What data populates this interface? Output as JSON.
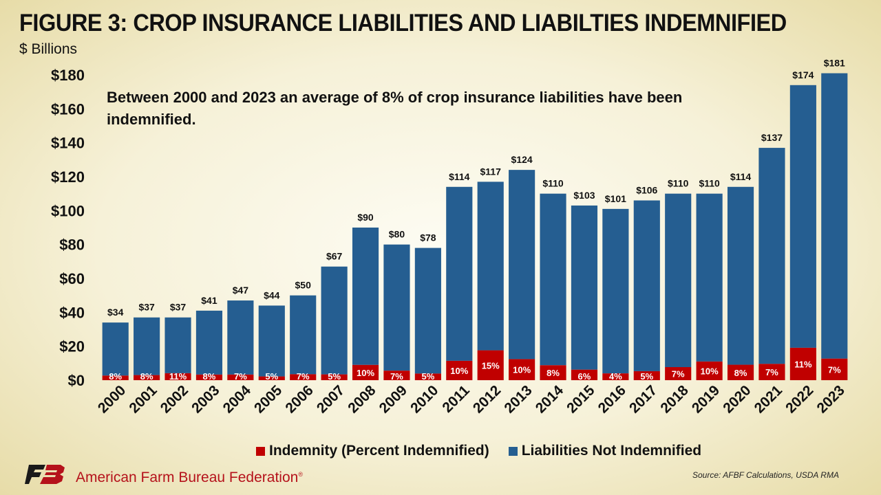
{
  "header": {
    "title": "FIGURE 3: CROP INSURANCE LIABILITIES AND LIABILTIES INDEMNIFIED",
    "unit": "$ Billions"
  },
  "annotation": {
    "line1": "Between 2000 and 2023 an average of 8% of crop insurance liabilities have been",
    "line2": "indemnified."
  },
  "legend": {
    "indemnity": "Indemnity (Percent Indemnified)",
    "not_indemnified": "Liabilities Not Indemnified"
  },
  "footer": {
    "org": "American Farm Bureau Federation",
    "registered": "®",
    "source": "Source: AFBF Calculations, USDA RMA"
  },
  "colors": {
    "indemnity": "#c00000",
    "not_indemnified": "#255e91",
    "brand_red": "#b5121b",
    "logo_dark": "#1a1a1a"
  },
  "chart_data": {
    "type": "bar",
    "stacked": true,
    "categories": [
      "2000",
      "2001",
      "2002",
      "2003",
      "2004",
      "2005",
      "2006",
      "2007",
      "2008",
      "2009",
      "2010",
      "2011",
      "2012",
      "2013",
      "2014",
      "2015",
      "2016",
      "2017",
      "2018",
      "2019",
      "2020",
      "2021",
      "2022",
      "2023"
    ],
    "ylim": [
      0,
      180
    ],
    "ytick_values": [
      0,
      20,
      40,
      60,
      80,
      100,
      120,
      140,
      160,
      180
    ],
    "ytick_labels": [
      "$0",
      "$20",
      "$40",
      "$60",
      "$80",
      "$100",
      "$120",
      "$140",
      "$160",
      "$180"
    ],
    "grid": false,
    "legend_position": "bottom",
    "total_labels": [
      "$34",
      "$37",
      "$37",
      "$41",
      "$47",
      "$44",
      "$50",
      "$67",
      "$90",
      "$80",
      "$78",
      "$114",
      "$117",
      "$124",
      "$110",
      "$103",
      "$101",
      "$106",
      "$110",
      "$110",
      "$114",
      "$137",
      "$174",
      "$181"
    ],
    "percent_labels": [
      "8%",
      "8%",
      "11%",
      "8%",
      "7%",
      "5%",
      "7%",
      "5%",
      "10%",
      "7%",
      "5%",
      "10%",
      "15%",
      "10%",
      "8%",
      "6%",
      "4%",
      "5%",
      "7%",
      "10%",
      "8%",
      "7%",
      "11%",
      "7%"
    ],
    "series": [
      {
        "name": "Indemnity (Percent Indemnified)",
        "values": [
          2.7,
          3.0,
          4.1,
          3.3,
          3.3,
          2.2,
          3.5,
          3.4,
          9.0,
          5.6,
          3.9,
          11.4,
          17.6,
          12.4,
          8.8,
          6.2,
          4.0,
          5.3,
          7.7,
          11.0,
          9.1,
          9.6,
          19.1,
          12.7
        ]
      },
      {
        "name": "Liabilities Not Indemnified",
        "values": [
          31.3,
          34.0,
          32.9,
          37.7,
          43.7,
          41.8,
          46.5,
          63.6,
          81.0,
          74.4,
          74.1,
          102.6,
          99.4,
          111.6,
          101.2,
          96.8,
          97.0,
          100.7,
          102.3,
          99.0,
          104.9,
          127.4,
          154.9,
          168.3
        ]
      }
    ]
  }
}
